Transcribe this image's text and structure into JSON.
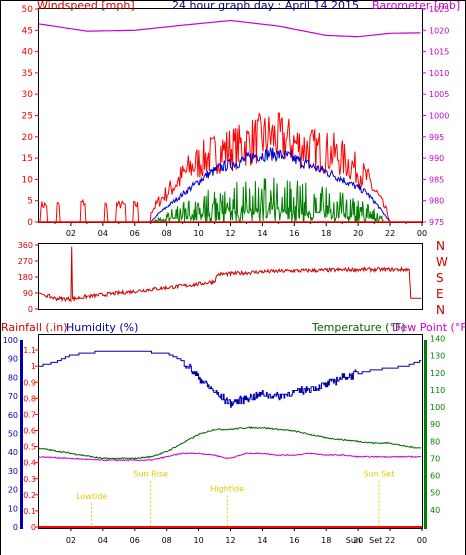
{
  "header": {
    "title": "24 hour graph day : April 14 2015",
    "left_label": "Windspeed [mph]",
    "right_label": "Barometer [mb]"
  },
  "colors": {
    "wind": "#ff0000",
    "gust_blue": "#0000cc",
    "gust_green": "#008000",
    "barometer": "#cc00cc",
    "direction": "#cc0000",
    "humidity": "#0000aa",
    "temperature": "#006600",
    "dewpoint": "#cc00cc",
    "rain": "#ff0000",
    "marker": "#e6c800",
    "blue_axis": "#0000aa",
    "green_axis": "#008000"
  },
  "chart_data": [
    {
      "type": "line",
      "name": "wind-barometer",
      "x_ticks": [
        "02",
        "04",
        "06",
        "08",
        "10",
        "12",
        "14",
        "16",
        "18",
        "20",
        "22",
        "00"
      ],
      "left_axis": {
        "label": "Windspeed [mph]",
        "ticks": [
          "0",
          "5",
          "10",
          "15",
          "20",
          "25",
          "30",
          "35",
          "40",
          "45",
          "50"
        ],
        "range": [
          0,
          50
        ]
      },
      "right_axis": {
        "label": "Barometer [mb]",
        "ticks": [
          "975",
          "980",
          "985",
          "990",
          "995",
          "1000",
          "1005",
          "1010",
          "1015",
          "1020",
          "1025"
        ],
        "range": [
          975,
          1025
        ]
      },
      "barometer_curve": [
        [
          0,
          1021.5
        ],
        [
          3,
          1019.8
        ],
        [
          6,
          1020.0
        ],
        [
          9,
          1021.2
        ],
        [
          12,
          1022.3
        ],
        [
          15,
          1021.0
        ],
        [
          18,
          1018.8
        ],
        [
          20,
          1018.5
        ],
        [
          22,
          1019.3
        ],
        [
          24,
          1019.4
        ]
      ],
      "wind_avg_envelope": [
        [
          0,
          0
        ],
        [
          7,
          0
        ],
        [
          7.5,
          2
        ],
        [
          8.5,
          5
        ],
        [
          9.5,
          8
        ],
        [
          10.5,
          11
        ],
        [
          11.5,
          13
        ],
        [
          12.5,
          14
        ],
        [
          13.5,
          15.5
        ],
        [
          14.5,
          16
        ],
        [
          15.5,
          15.5
        ],
        [
          16.5,
          14
        ],
        [
          17.5,
          12.5
        ],
        [
          18.5,
          11
        ],
        [
          19.5,
          9
        ],
        [
          20.5,
          7
        ],
        [
          21.2,
          4
        ],
        [
          21.8,
          1
        ],
        [
          22,
          0
        ],
        [
          24,
          0
        ]
      ],
      "gust_envelope": [
        [
          0,
          3
        ],
        [
          7,
          3
        ],
        [
          7.5,
          6
        ],
        [
          8.5,
          11
        ],
        [
          9.5,
          16
        ],
        [
          10.5,
          19
        ],
        [
          11.5,
          21
        ],
        [
          12.5,
          22
        ],
        [
          13.5,
          24
        ],
        [
          14.5,
          25
        ],
        [
          15.5,
          24
        ],
        [
          16.5,
          22
        ],
        [
          17.5,
          21
        ],
        [
          18.5,
          20
        ],
        [
          19.5,
          17
        ],
        [
          20.5,
          13
        ],
        [
          21.2,
          8
        ],
        [
          21.8,
          3
        ],
        [
          22,
          0
        ],
        [
          24,
          0
        ]
      ]
    },
    {
      "type": "line",
      "name": "wind-direction",
      "left_ticks": [
        "360",
        "270",
        "180",
        "90",
        "0"
      ],
      "right_ticks": [
        "N",
        "W",
        "S",
        "E",
        "N"
      ],
      "points": [
        [
          0,
          90
        ],
        [
          1,
          60
        ],
        [
          2,
          55
        ],
        [
          3,
          70
        ],
        [
          4,
          80
        ],
        [
          5,
          90
        ],
        [
          6,
          100
        ],
        [
          8,
          120
        ],
        [
          10,
          140
        ],
        [
          11,
          155
        ],
        [
          11.2,
          195
        ],
        [
          12,
          198
        ],
        [
          14,
          210
        ],
        [
          16,
          215
        ],
        [
          18,
          218
        ],
        [
          20,
          222
        ],
        [
          22,
          222
        ],
        [
          23.2,
          222
        ],
        [
          23.3,
          60
        ],
        [
          24,
          60
        ]
      ]
    },
    {
      "type": "line",
      "name": "rain-humidity-temp-dew",
      "labels": {
        "rainfall": "Rainfall (.in)",
        "humidity": "Humidity (%)",
        "temperature": "Temperature (°F)",
        "dewpoint": "Dew Point (°F)"
      },
      "humidity_axis": {
        "ticks": [
          "0",
          "10",
          "20",
          "30",
          "40",
          "50",
          "60",
          "70",
          "80",
          "90",
          "100"
        ],
        "range": [
          0,
          100
        ]
      },
      "rain_axis": {
        "ticks": [
          "0",
          "0.1",
          "0.2",
          "0.3",
          "0.4",
          "0.5",
          "0.6",
          "0.7",
          "0.8",
          "0.9",
          "1",
          "1.1"
        ],
        "range": [
          0,
          1.2
        ]
      },
      "temp_axis": {
        "ticks": [
          "40",
          "50",
          "60",
          "70",
          "80",
          "90",
          "100",
          "110",
          "120",
          "130",
          "140"
        ],
        "range": [
          30,
          145
        ]
      },
      "humidity": [
        [
          0,
          86
        ],
        [
          1,
          88
        ],
        [
          2,
          92
        ],
        [
          4,
          94
        ],
        [
          6,
          94
        ],
        [
          8,
          93
        ],
        [
          9,
          89
        ],
        [
          10,
          80
        ],
        [
          11,
          72
        ],
        [
          12,
          66
        ],
        [
          13,
          69
        ],
        [
          14,
          71
        ],
        [
          15,
          70
        ],
        [
          16,
          72
        ],
        [
          17,
          74
        ],
        [
          18,
          76
        ],
        [
          19,
          80
        ],
        [
          20,
          82
        ],
        [
          21,
          84
        ],
        [
          22,
          85
        ],
        [
          23,
          86
        ],
        [
          24,
          89
        ]
      ],
      "temperature": [
        [
          0,
          76
        ],
        [
          2,
          73
        ],
        [
          4,
          70
        ],
        [
          6,
          70
        ],
        [
          7,
          71
        ],
        [
          8,
          74
        ],
        [
          9,
          79
        ],
        [
          10,
          84
        ],
        [
          11,
          87
        ],
        [
          12,
          87
        ],
        [
          13,
          88
        ],
        [
          14,
          88
        ],
        [
          15,
          87
        ],
        [
          16,
          86
        ],
        [
          17,
          84
        ],
        [
          18,
          82
        ],
        [
          19,
          81
        ],
        [
          20,
          80
        ],
        [
          21,
          79
        ],
        [
          22,
          79
        ],
        [
          23,
          77
        ],
        [
          24,
          76
        ]
      ],
      "dewpoint": [
        [
          0,
          71
        ],
        [
          2,
          70
        ],
        [
          4,
          69
        ],
        [
          6,
          69
        ],
        [
          7,
          69
        ],
        [
          8,
          71
        ],
        [
          9,
          73
        ],
        [
          10,
          73
        ],
        [
          11,
          72
        ],
        [
          11.8,
          70
        ],
        [
          12.3,
          71
        ],
        [
          13,
          73
        ],
        [
          14,
          73
        ],
        [
          15,
          72
        ],
        [
          16,
          72
        ],
        [
          17,
          73
        ],
        [
          18,
          72
        ],
        [
          19,
          72
        ],
        [
          20,
          71
        ],
        [
          22,
          71
        ],
        [
          24,
          71
        ]
      ],
      "rainfall": [
        [
          0,
          0
        ],
        [
          24,
          0
        ]
      ],
      "markers": [
        {
          "label": "Lowtide",
          "x": 3.3,
          "level": 0.15
        },
        {
          "label": "Sun Rise",
          "x": 7.0,
          "level": 0.27
        },
        {
          "label": "Hightide",
          "x": 11.8,
          "level": 0.19
        },
        {
          "label": "Sun Set",
          "x": 21.3,
          "level": 0.27
        },
        {
          "label": "Sun",
          "x": 19.7,
          "level": 0.0
        },
        {
          "label": "Set",
          "x": 21.1,
          "level": 0.0
        }
      ],
      "x_ticks": [
        "02",
        "04",
        "06",
        "08",
        "10",
        "12",
        "14",
        "16",
        "18",
        "20",
        "22",
        "00"
      ]
    }
  ]
}
